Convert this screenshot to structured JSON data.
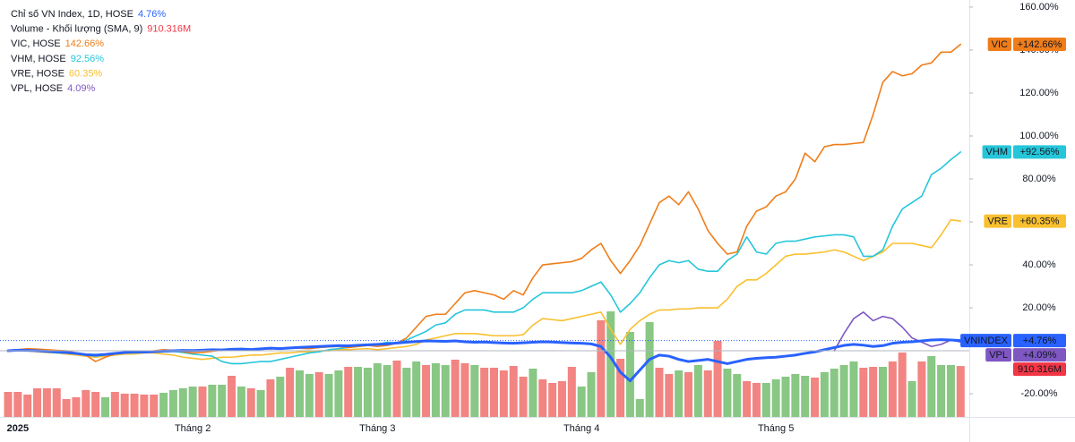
{
  "chart_data": {
    "type": "line",
    "categories": [
      null,
      "2025",
      null,
      null,
      null,
      null,
      null,
      null,
      null,
      null,
      null,
      null,
      null,
      null,
      null,
      null,
      null,
      null,
      null,
      "Tháng 2",
      null,
      null,
      null,
      null,
      null,
      null,
      null,
      null,
      null,
      null,
      null,
      null,
      null,
      null,
      null,
      null,
      null,
      null,
      "Tháng 3",
      null,
      null,
      null,
      null,
      null,
      null,
      null,
      null,
      null,
      null,
      null,
      null,
      null,
      null,
      null,
      null,
      null,
      null,
      null,
      null,
      "Tháng 4",
      null,
      null,
      null,
      null,
      null,
      null,
      null,
      null,
      null,
      null,
      null,
      null,
      null,
      null,
      null,
      null,
      null,
      null,
      null,
      "Tháng 5",
      null,
      null,
      null,
      null,
      null,
      null,
      null,
      null,
      null,
      null,
      null,
      null,
      null,
      null,
      null,
      null,
      null,
      null,
      null
    ],
    "ylim": [
      -30.8,
      163.3
    ],
    "yticks": [
      {
        "value": 160,
        "label": "160.00%"
      },
      {
        "value": 140,
        "label": "140.00%"
      },
      {
        "value": 120,
        "label": "120.00%"
      },
      {
        "value": 100,
        "label": "100.00%"
      },
      {
        "value": 80,
        "label": "80.00%"
      },
      {
        "value": 60,
        "label": "60.00%"
      },
      {
        "value": 40,
        "label": "40.00%"
      },
      {
        "value": 20,
        "label": "20.00%"
      },
      {
        "value": -20,
        "label": "-20.00%"
      }
    ],
    "series": [
      {
        "name": "Chỉ số VN Index, 1D, HOSE",
        "tag": "VNINDEX",
        "color": "#2962ff",
        "line_width": 3,
        "legend_value": "4.76%",
        "badge_value": "+4.76%",
        "price_line": true,
        "values": [
          0,
          0.3,
          0.2,
          0,
          -0.3,
          -0.5,
          -0.8,
          -1.2,
          -1.8,
          -2,
          -1.7,
          -1.2,
          -0.8,
          -0.5,
          -0.6,
          -0.4,
          -0.2,
          0,
          0.2,
          0.1,
          0.3,
          0.5,
          0.4,
          0.7,
          0.8,
          0.6,
          0.9,
          1.2,
          1,
          1.3,
          1.6,
          1.8,
          2,
          2.2,
          2.4,
          2.3,
          2.6,
          2.8,
          3,
          3.2,
          3.6,
          4,
          4.3,
          4.6,
          4.5,
          4.4,
          4.6,
          4.2,
          4,
          4.1,
          3.8,
          3.6,
          3.5,
          3.7,
          4,
          4.2,
          4.1,
          3.8,
          3.6,
          3.5,
          3.2,
          2,
          -3,
          -10,
          -14,
          -9,
          -4,
          -2,
          -2.5,
          -4,
          -5,
          -4.5,
          -4,
          -5,
          -6,
          -5,
          -4,
          -3.5,
          -3.2,
          -3,
          -2.5,
          -2,
          -1.2,
          -0.5,
          0.5,
          1.5,
          2.5,
          3,
          2.6,
          2,
          2.4,
          3.5,
          4,
          4.2,
          4.6,
          5,
          5.2,
          5,
          4.76
        ]
      },
      {
        "name": "VIC, HOSE",
        "tag": "VIC",
        "color": "#ef7d1a",
        "line_width": 1.6,
        "legend_value": "142.66%",
        "badge_value": "+142.66%",
        "values": [
          0,
          0.5,
          1,
          0.8,
          0.5,
          0.2,
          0,
          -1,
          -2,
          -5,
          -3,
          -1.5,
          -1,
          -0.8,
          -0.5,
          0,
          0.5,
          0.2,
          -0.5,
          -1,
          -0.8,
          -0.2,
          0.3,
          0.5,
          0.2,
          0.5,
          1,
          0.8,
          1.2,
          1.5,
          1.2,
          1,
          1.5,
          1.8,
          2,
          1.5,
          2,
          2.5,
          2,
          2.5,
          3.5,
          6,
          11,
          16,
          17,
          17,
          22,
          27,
          28,
          27,
          26,
          24,
          28,
          26,
          34,
          40,
          40.5,
          41,
          41.5,
          43,
          47,
          50,
          42,
          36,
          42,
          49,
          59,
          69,
          72,
          68,
          74,
          66,
          56,
          50,
          45,
          46,
          58,
          65,
          67,
          72,
          74,
          80,
          92,
          88,
          95,
          96,
          96,
          96.5,
          97,
          110,
          125,
          130,
          128,
          129,
          133,
          134,
          139,
          139,
          142.66
        ]
      },
      {
        "name": "VHM, HOSE",
        "tag": "VHM",
        "color": "#26c6da",
        "line_width": 1.6,
        "legend_value": "92.56%",
        "badge_value": "+92.56%",
        "values": [
          0,
          0.5,
          0.3,
          0,
          -0.5,
          -1,
          -1,
          -1.5,
          -2,
          -2.5,
          -2,
          -1.5,
          -1,
          -1,
          -0.8,
          -0.5,
          -0.5,
          -0.3,
          -0.8,
          -1.5,
          -2,
          -2.5,
          -5,
          -6,
          -6,
          -5.5,
          -5,
          -5,
          -4,
          -3,
          -2,
          -1,
          -0.5,
          0.5,
          1,
          1.5,
          2,
          2.5,
          3,
          4,
          3.5,
          5,
          7,
          9,
          12,
          13,
          17,
          19,
          19,
          19,
          18,
          18,
          18,
          20,
          24,
          27,
          27,
          27,
          27,
          28,
          30,
          32,
          26,
          18,
          22,
          27,
          34,
          40,
          42,
          41,
          42,
          38,
          37,
          37,
          42,
          45,
          53,
          46,
          45,
          50,
          51,
          51,
          52,
          53,
          53.5,
          54,
          54,
          53,
          44,
          44,
          47,
          58,
          66,
          69,
          72,
          82,
          85,
          89,
          92.56
        ]
      },
      {
        "name": "VRE, HOSE",
        "tag": "VRE",
        "color": "#f9c02f",
        "badge_text_color": "#131722",
        "line_width": 1.6,
        "legend_value": "60.35%",
        "badge_value": "+60.35%",
        "values": [
          0,
          0.3,
          0,
          -0.5,
          -0.8,
          -1,
          -1.5,
          -2,
          -2.5,
          -3,
          -2.5,
          -2,
          -1.5,
          -1.5,
          -1,
          -1,
          -1.5,
          -2,
          -3,
          -3.5,
          -4,
          -3.5,
          -3,
          -3,
          -2.5,
          -2,
          -2,
          -1.5,
          -1,
          -1,
          -0.5,
          -0.5,
          0,
          0,
          0.5,
          0.5,
          0.8,
          1,
          0.5,
          1,
          1.5,
          2,
          3,
          5,
          6,
          7,
          8,
          8,
          8,
          7.5,
          7,
          7,
          7,
          7.5,
          12,
          15,
          14.5,
          14,
          15,
          16,
          17,
          18,
          10,
          3,
          10,
          14,
          17,
          19,
          19,
          19.5,
          19.5,
          20,
          20,
          20,
          24,
          30,
          33,
          33,
          36,
          40,
          44,
          45,
          45,
          45.5,
          46,
          47,
          46,
          44,
          42,
          44,
          46,
          50,
          50,
          50,
          49,
          48,
          54,
          61,
          60.35
        ]
      },
      {
        "name": "VPL, HOSE",
        "tag": "VPL",
        "color": "#7e57c2",
        "line_width": 1.6,
        "legend_value": "4.09%",
        "badge_value": "+4.09%",
        "values": [
          null,
          null,
          null,
          null,
          null,
          null,
          null,
          null,
          null,
          null,
          null,
          null,
          null,
          null,
          null,
          null,
          null,
          null,
          null,
          null,
          null,
          null,
          null,
          null,
          null,
          null,
          null,
          null,
          null,
          null,
          null,
          null,
          null,
          null,
          null,
          null,
          null,
          null,
          null,
          null,
          null,
          null,
          null,
          null,
          null,
          null,
          null,
          null,
          null,
          null,
          null,
          null,
          null,
          null,
          null,
          null,
          null,
          null,
          null,
          null,
          null,
          null,
          null,
          null,
          null,
          null,
          null,
          null,
          null,
          null,
          null,
          null,
          null,
          null,
          null,
          null,
          null,
          null,
          null,
          null,
          null,
          null,
          null,
          null,
          null,
          0,
          8,
          15,
          18,
          14,
          16,
          15,
          11,
          6,
          4,
          2,
          3,
          5,
          4.09
        ]
      }
    ],
    "volume": {
      "name": "Volume - Khối lượng (SMA, 9)",
      "legend_value": "910.316M",
      "badge_value": "910.316M",
      "legend_color": "#f23645",
      "badge_color": "#f23645",
      "up_color": "#88c784",
      "down_color": "#f28482",
      "vlim": [
        0,
        4000
      ],
      "values": [
        448,
        448,
        400,
        512,
        512,
        512,
        320,
        352,
        480,
        448,
        352,
        448,
        416,
        416,
        400,
        400,
        432,
        480,
        512,
        544,
        544,
        576,
        576,
        736,
        544,
        512,
        480,
        672,
        720,
        880,
        832,
        768,
        800,
        768,
        832,
        896,
        896,
        880,
        960,
        928,
        1008,
        880,
        992,
        928,
        960,
        928,
        1024,
        960,
        928,
        880,
        880,
        832,
        912,
        720,
        864,
        672,
        608,
        640,
        896,
        544,
        800,
        1728,
        1888,
        1040,
        1520,
        320,
        1696,
        880,
        768,
        832,
        800,
        928,
        832,
        1360,
        864,
        768,
        640,
        608,
        608,
        672,
        720,
        768,
        736,
        704,
        800,
        864,
        928,
        992,
        880,
        896,
        896,
        992,
        1152,
        640,
        992,
        1088,
        928,
        928,
        910.316
      ],
      "up": [
        false,
        false,
        false,
        false,
        false,
        false,
        false,
        false,
        false,
        false,
        true,
        false,
        false,
        false,
        false,
        false,
        true,
        true,
        true,
        true,
        false,
        true,
        true,
        false,
        true,
        false,
        true,
        false,
        true,
        false,
        true,
        true,
        false,
        true,
        true,
        false,
        true,
        true,
        true,
        true,
        false,
        true,
        true,
        false,
        true,
        true,
        false,
        false,
        true,
        false,
        false,
        false,
        false,
        false,
        true,
        false,
        false,
        false,
        false,
        true,
        true,
        false,
        true,
        false,
        true,
        true,
        true,
        false,
        false,
        true,
        false,
        true,
        false,
        false,
        true,
        true,
        false,
        false,
        true,
        true,
        true,
        true,
        true,
        false,
        true,
        true,
        true,
        true,
        false,
        false,
        true,
        false,
        false,
        true,
        false,
        true,
        true,
        true,
        false
      ]
    }
  }
}
